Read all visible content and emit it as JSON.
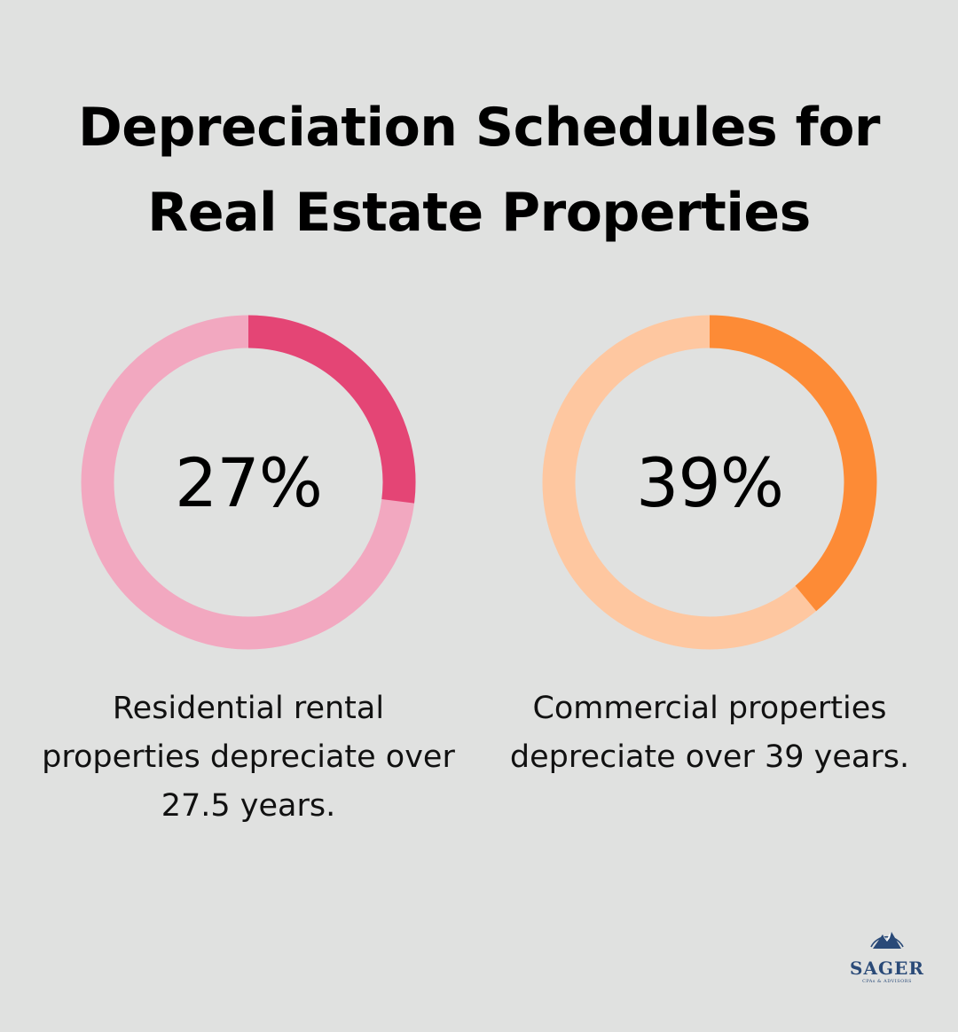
{
  "title_lines": [
    "Depreciation Schedules for",
    "Real Estate Properties"
  ],
  "chart_data": [
    {
      "type": "pie",
      "value": 27,
      "label": "27%",
      "caption_lines": [
        "Residential rental",
        "properties depreciate over",
        "27.5 years."
      ],
      "colors": {
        "fill": "#e44575",
        "track": "#f2a8c0"
      }
    },
    {
      "type": "pie",
      "value": 39,
      "label": "39%",
      "caption_lines": [
        "Commercial properties",
        "depreciate over 39 years."
      ],
      "colors": {
        "fill": "#fd8b36",
        "track": "#fec7a0"
      }
    }
  ],
  "logo": {
    "brand": "SAGER",
    "tagline": "CPAs & ADVISORS",
    "icon": "mountain-logo-icon",
    "color": "#2a4a78"
  },
  "background": "#e0e1e0"
}
